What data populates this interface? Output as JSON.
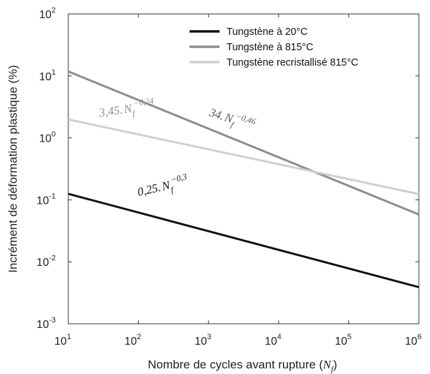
{
  "chart_data": {
    "type": "line",
    "title": "",
    "xlabel": "Nombre de cycles avant rupture (N_f)",
    "ylabel": "Incrément de déformation plastique (%)",
    "xscale": "log",
    "yscale": "log",
    "xlim": [
      10,
      1000000
    ],
    "ylim": [
      0.001,
      100
    ],
    "xticks": [
      {
        "base": "10",
        "exp": "1"
      },
      {
        "base": "10",
        "exp": "2"
      },
      {
        "base": "10",
        "exp": "3"
      },
      {
        "base": "10",
        "exp": "4"
      },
      {
        "base": "10",
        "exp": "5"
      },
      {
        "base": "10",
        "exp": "6"
      }
    ],
    "yticks": [
      {
        "base": "10",
        "exp": "-3"
      },
      {
        "base": "10",
        "exp": "-2"
      },
      {
        "base": "10",
        "exp": "-1"
      },
      {
        "base": "10",
        "exp": "0"
      },
      {
        "base": "10",
        "exp": "1"
      },
      {
        "base": "10",
        "exp": "2"
      }
    ],
    "grid": false,
    "legend_position": "top-right",
    "series": [
      {
        "name": "Tungstène à 20°C",
        "color": "#111111",
        "coef": 0.25,
        "exponent": -0.3,
        "x": [
          10,
          1000000
        ],
        "y": [
          0.125,
          0.0039
        ]
      },
      {
        "name": "Tungstène à 815°C",
        "color": "#8c8c8c",
        "coef": 34,
        "exponent": -0.46,
        "x": [
          10,
          1000000
        ],
        "y": [
          11.8,
          0.058
        ]
      },
      {
        "name": "Tungstène recristallisé 815°C",
        "color": "#cfcfcf",
        "coef": 3.45,
        "exponent": -0.24,
        "x": [
          10,
          1000000
        ],
        "y": [
          1.98,
          0.124
        ]
      }
    ],
    "annotations": [
      {
        "coef": "0,25.",
        "var": "N",
        "sub": "f",
        "exp": "−0,3",
        "color": "#111111",
        "x": 100,
        "y": 0.115,
        "angle": -13
      },
      {
        "coef": "34.",
        "var": "N",
        "sub": "f",
        "exp": "−0,46",
        "color": "#5a5a5a",
        "x": 1000,
        "y": 2.3,
        "angle": 18
      },
      {
        "coef": "3,45.",
        "var": "N",
        "sub": "f",
        "exp": "−0,24",
        "color": "#8e8e8e",
        "x": 28,
        "y": 2.2,
        "angle": -8
      }
    ]
  }
}
